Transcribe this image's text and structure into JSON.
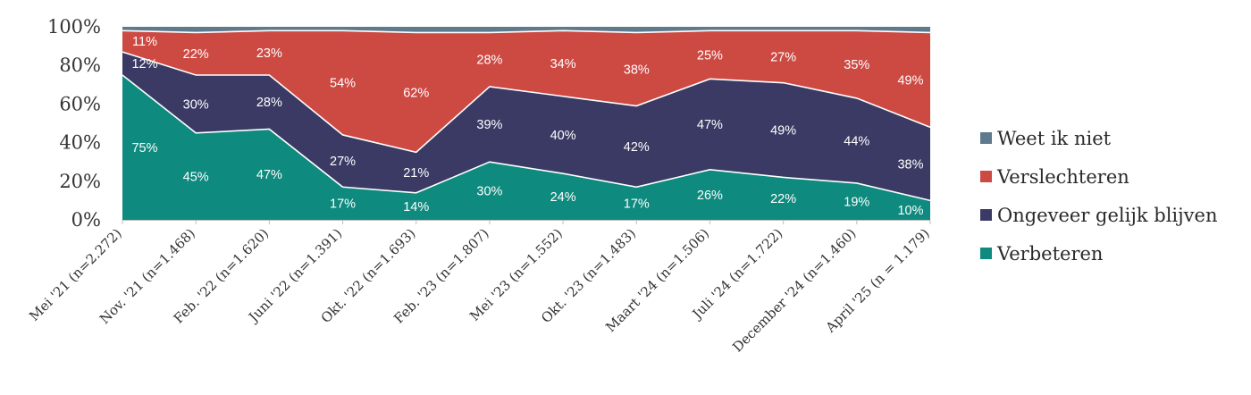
{
  "chart_data": {
    "type": "area",
    "stacked": true,
    "percent": true,
    "categories": [
      "Mei '21 (n=2.272)",
      "Nov. '21 (n=1.468)",
      "Feb. '22 (n=1.620)",
      "Juni '22 (n=1.391)",
      "Okt. '22 (n=1.693)",
      "Feb. '23 (n=1.807)",
      "Mei '23 (n=1.552)",
      "Okt. '23 (n=1.483)",
      "Maart '24 (n=1.506)",
      "Juli '24 (n=1.722)",
      "December '24 (n=1.460)",
      "April '25 (n = 1.179)"
    ],
    "series": [
      {
        "name": "Verbeteren",
        "color": "#0e8a7e",
        "values": [
          75,
          45,
          47,
          17,
          14,
          30,
          24,
          17,
          26,
          22,
          19,
          10
        ]
      },
      {
        "name": "Ongeveer gelijk blijven",
        "color": "#3a3a64",
        "values": [
          12,
          30,
          28,
          27,
          21,
          39,
          40,
          42,
          47,
          49,
          44,
          38
        ]
      },
      {
        "name": "Verslechteren",
        "color": "#cd4a43",
        "values": [
          11,
          22,
          23,
          54,
          62,
          28,
          34,
          38,
          25,
          27,
          35,
          49
        ]
      },
      {
        "name": "Weet ik niet",
        "color": "#5e7a8c",
        "values": [
          2,
          3,
          2,
          2,
          3,
          3,
          2,
          3,
          2,
          2,
          2,
          3
        ]
      }
    ],
    "data_labels": {
      "Verbeteren": [
        "75%",
        "45%",
        "47%",
        "17%",
        "14%",
        "30%",
        "24%",
        "17%",
        "26%",
        "22%",
        "19%",
        "10%"
      ],
      "Ongeveer gelijk blijven": [
        "12%",
        "30%",
        "28%",
        "27%",
        "21%",
        "39%",
        "40%",
        "42%",
        "47%",
        "49%",
        "44%",
        "38%"
      ],
      "Verslechteren": [
        "11%",
        "22%",
        "23%",
        "54%",
        "62%",
        "28%",
        "34%",
        "38%",
        "25%",
        "27%",
        "35%",
        "49%"
      ]
    },
    "yticks": [
      "0%",
      "20%",
      "40%",
      "60%",
      "80%",
      "100%"
    ],
    "ylim": [
      0,
      100
    ],
    "legend_position": "right",
    "legend_order": [
      "Weet ik niet",
      "Verslechteren",
      "Ongeveer gelijk blijven",
      "Verbeteren"
    ],
    "title": "",
    "xlabel": "",
    "ylabel": "",
    "grid": false
  }
}
